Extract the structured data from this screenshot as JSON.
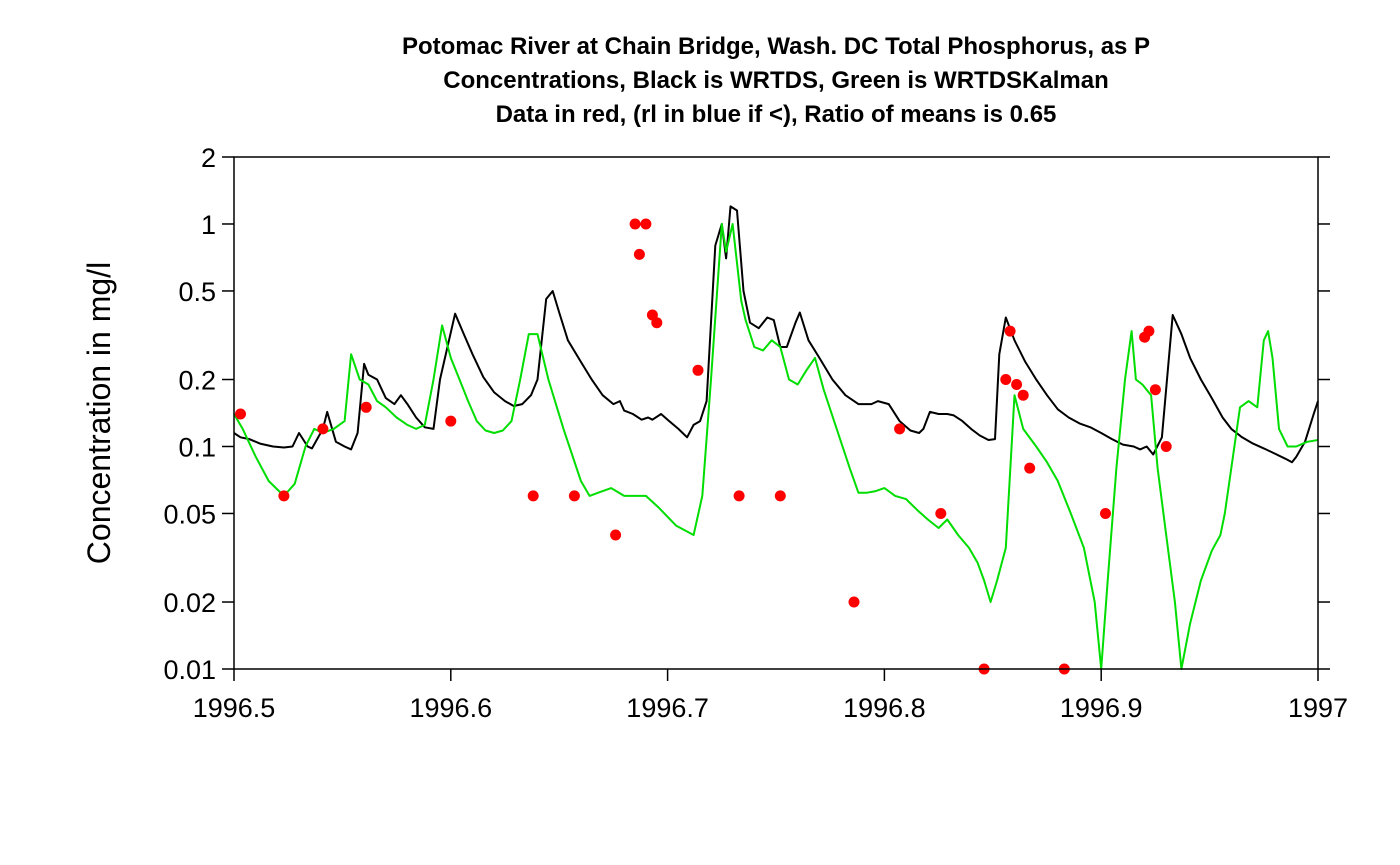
{
  "chart_data": {
    "type": "line",
    "title_lines": [
      "Potomac River at Chain Bridge, Wash. DC Total Phosphorus, as P",
      "Concentrations, Black is WRTDS, Green is WRTDSKalman",
      "Data in red, (rl in blue if <), Ratio of means is 0.65"
    ],
    "xlabel": "",
    "ylabel": "Concentration in mg/l",
    "xlim": [
      1996.5,
      1997.0
    ],
    "ylim": [
      0.01,
      2
    ],
    "y_scale": "log",
    "x_ticks": [
      1996.5,
      1996.6,
      1996.7,
      1996.8,
      1996.9,
      1997.0
    ],
    "x_tick_labels": [
      "1996.5",
      "1996.6",
      "1996.7",
      "1996.8",
      "1996.9",
      "1997"
    ],
    "y_ticks": [
      0.01,
      0.02,
      0.05,
      0.1,
      0.2,
      0.5,
      1,
      2
    ],
    "y_tick_labels": [
      "0.01",
      "0.02",
      "0.05",
      "0.1",
      "0.2",
      "0.5",
      "1",
      "2"
    ],
    "grid": false,
    "legend": "none",
    "series": [
      {
        "color": "#000000",
        "kind": "line",
        "points": [
          [
            1996.5,
            0.115
          ],
          [
            1996.503,
            0.11
          ],
          [
            1996.507,
            0.108
          ],
          [
            1996.512,
            0.103
          ],
          [
            1996.518,
            0.1
          ],
          [
            1996.523,
            0.099
          ],
          [
            1996.527,
            0.1
          ],
          [
            1996.53,
            0.115
          ],
          [
            1996.534,
            0.1
          ],
          [
            1996.536,
            0.098
          ],
          [
            1996.541,
            0.12
          ],
          [
            1996.543,
            0.143
          ],
          [
            1996.547,
            0.105
          ],
          [
            1996.551,
            0.1
          ],
          [
            1996.554,
            0.097
          ],
          [
            1996.557,
            0.115
          ],
          [
            1996.56,
            0.235
          ],
          [
            1996.562,
            0.21
          ],
          [
            1996.566,
            0.2
          ],
          [
            1996.57,
            0.165
          ],
          [
            1996.574,
            0.155
          ],
          [
            1996.577,
            0.17
          ],
          [
            1996.58,
            0.155
          ],
          [
            1996.584,
            0.135
          ],
          [
            1996.588,
            0.122
          ],
          [
            1996.592,
            0.12
          ],
          [
            1996.595,
            0.2
          ],
          [
            1996.602,
            0.395
          ],
          [
            1996.606,
            0.32
          ],
          [
            1996.61,
            0.26
          ],
          [
            1996.615,
            0.205
          ],
          [
            1996.62,
            0.175
          ],
          [
            1996.625,
            0.16
          ],
          [
            1996.629,
            0.152
          ],
          [
            1996.633,
            0.155
          ],
          [
            1996.637,
            0.17
          ],
          [
            1996.64,
            0.2
          ],
          [
            1996.644,
            0.46
          ],
          [
            1996.647,
            0.5
          ],
          [
            1996.65,
            0.4
          ],
          [
            1996.654,
            0.3
          ],
          [
            1996.66,
            0.24
          ],
          [
            1996.665,
            0.2
          ],
          [
            1996.67,
            0.17
          ],
          [
            1996.675,
            0.155
          ],
          [
            1996.678,
            0.16
          ],
          [
            1996.68,
            0.145
          ],
          [
            1996.684,
            0.14
          ],
          [
            1996.688,
            0.132
          ],
          [
            1996.691,
            0.135
          ],
          [
            1996.693,
            0.132
          ],
          [
            1996.697,
            0.14
          ],
          [
            1996.7,
            0.132
          ],
          [
            1996.705,
            0.12
          ],
          [
            1996.709,
            0.11
          ],
          [
            1996.712,
            0.125
          ],
          [
            1996.715,
            0.13
          ],
          [
            1996.718,
            0.16
          ],
          [
            1996.722,
            0.8
          ],
          [
            1996.725,
            1.0
          ],
          [
            1996.727,
            0.7
          ],
          [
            1996.729,
            1.2
          ],
          [
            1996.732,
            1.15
          ],
          [
            1996.735,
            0.5
          ],
          [
            1996.738,
            0.36
          ],
          [
            1996.742,
            0.34
          ],
          [
            1996.746,
            0.38
          ],
          [
            1996.749,
            0.37
          ],
          [
            1996.752,
            0.28
          ],
          [
            1996.755,
            0.28
          ],
          [
            1996.759,
            0.36
          ],
          [
            1996.761,
            0.4
          ],
          [
            1996.765,
            0.3
          ],
          [
            1996.77,
            0.25
          ],
          [
            1996.776,
            0.2
          ],
          [
            1996.782,
            0.17
          ],
          [
            1996.788,
            0.155
          ],
          [
            1996.794,
            0.155
          ],
          [
            1996.797,
            0.16
          ],
          [
            1996.802,
            0.155
          ],
          [
            1996.807,
            0.13
          ],
          [
            1996.812,
            0.118
          ],
          [
            1996.816,
            0.115
          ],
          [
            1996.818,
            0.12
          ],
          [
            1996.821,
            0.143
          ],
          [
            1996.825,
            0.14
          ],
          [
            1996.829,
            0.14
          ],
          [
            1996.832,
            0.138
          ],
          [
            1996.836,
            0.13
          ],
          [
            1996.84,
            0.12
          ],
          [
            1996.844,
            0.112
          ],
          [
            1996.848,
            0.107
          ],
          [
            1996.851,
            0.108
          ],
          [
            1996.853,
            0.26
          ],
          [
            1996.856,
            0.38
          ],
          [
            1996.86,
            0.3
          ],
          [
            1996.865,
            0.24
          ],
          [
            1996.87,
            0.2
          ],
          [
            1996.875,
            0.17
          ],
          [
            1996.88,
            0.147
          ],
          [
            1996.885,
            0.135
          ],
          [
            1996.89,
            0.127
          ],
          [
            1996.895,
            0.122
          ],
          [
            1996.9,
            0.115
          ],
          [
            1996.905,
            0.108
          ],
          [
            1996.91,
            0.102
          ],
          [
            1996.915,
            0.1
          ],
          [
            1996.918,
            0.097
          ],
          [
            1996.921,
            0.1
          ],
          [
            1996.924,
            0.092
          ],
          [
            1996.928,
            0.11
          ],
          [
            1996.933,
            0.39
          ],
          [
            1996.937,
            0.32
          ],
          [
            1996.941,
            0.25
          ],
          [
            1996.946,
            0.2
          ],
          [
            1996.951,
            0.165
          ],
          [
            1996.956,
            0.135
          ],
          [
            1996.96,
            0.12
          ],
          [
            1996.965,
            0.11
          ],
          [
            1996.97,
            0.103
          ],
          [
            1996.975,
            0.098
          ],
          [
            1996.98,
            0.093
          ],
          [
            1996.985,
            0.088
          ],
          [
            1996.988,
            0.085
          ],
          [
            1996.99,
            0.09
          ],
          [
            1996.994,
            0.105
          ],
          [
            1996.998,
            0.14
          ],
          [
            1997.0,
            0.16
          ]
        ]
      },
      {
        "color": "#00dd00",
        "kind": "line",
        "points": [
          [
            1996.5,
            0.14
          ],
          [
            1996.504,
            0.12
          ],
          [
            1996.51,
            0.09
          ],
          [
            1996.516,
            0.07
          ],
          [
            1996.523,
            0.06
          ],
          [
            1996.528,
            0.068
          ],
          [
            1996.533,
            0.1
          ],
          [
            1996.537,
            0.12
          ],
          [
            1996.541,
            0.115
          ],
          [
            1996.546,
            0.12
          ],
          [
            1996.551,
            0.13
          ],
          [
            1996.554,
            0.26
          ],
          [
            1996.558,
            0.2
          ],
          [
            1996.562,
            0.19
          ],
          [
            1996.566,
            0.16
          ],
          [
            1996.57,
            0.15
          ],
          [
            1996.575,
            0.135
          ],
          [
            1996.58,
            0.125
          ],
          [
            1996.584,
            0.12
          ],
          [
            1996.588,
            0.125
          ],
          [
            1996.592,
            0.2
          ],
          [
            1996.596,
            0.35
          ],
          [
            1996.6,
            0.25
          ],
          [
            1996.604,
            0.2
          ],
          [
            1996.608,
            0.16
          ],
          [
            1996.612,
            0.13
          ],
          [
            1996.616,
            0.118
          ],
          [
            1996.62,
            0.115
          ],
          [
            1996.624,
            0.118
          ],
          [
            1996.628,
            0.13
          ],
          [
            1996.632,
            0.2
          ],
          [
            1996.636,
            0.32
          ],
          [
            1996.64,
            0.32
          ],
          [
            1996.645,
            0.2
          ],
          [
            1996.652,
            0.12
          ],
          [
            1996.66,
            0.07
          ],
          [
            1996.664,
            0.06
          ],
          [
            1996.668,
            0.062
          ],
          [
            1996.674,
            0.065
          ],
          [
            1996.68,
            0.06
          ],
          [
            1996.686,
            0.06
          ],
          [
            1996.69,
            0.06
          ],
          [
            1996.696,
            0.053
          ],
          [
            1996.704,
            0.044
          ],
          [
            1996.712,
            0.04
          ],
          [
            1996.716,
            0.06
          ],
          [
            1996.72,
            0.2
          ],
          [
            1996.725,
            1.0
          ],
          [
            1996.727,
            0.75
          ],
          [
            1996.73,
            1.0
          ],
          [
            1996.734,
            0.45
          ],
          [
            1996.736,
            0.37
          ],
          [
            1996.74,
            0.28
          ],
          [
            1996.744,
            0.27
          ],
          [
            1996.748,
            0.3
          ],
          [
            1996.752,
            0.28
          ],
          [
            1996.756,
            0.2
          ],
          [
            1996.76,
            0.19
          ],
          [
            1996.764,
            0.22
          ],
          [
            1996.768,
            0.25
          ],
          [
            1996.772,
            0.18
          ],
          [
            1996.778,
            0.12
          ],
          [
            1996.784,
            0.08
          ],
          [
            1996.788,
            0.062
          ],
          [
            1996.792,
            0.062
          ],
          [
            1996.796,
            0.063
          ],
          [
            1996.8,
            0.065
          ],
          [
            1996.805,
            0.06
          ],
          [
            1996.81,
            0.058
          ],
          [
            1996.815,
            0.052
          ],
          [
            1996.82,
            0.047
          ],
          [
            1996.825,
            0.043
          ],
          [
            1996.829,
            0.047
          ],
          [
            1996.834,
            0.04
          ],
          [
            1996.839,
            0.035
          ],
          [
            1996.843,
            0.03
          ],
          [
            1996.846,
            0.025
          ],
          [
            1996.849,
            0.02
          ],
          [
            1996.852,
            0.025
          ],
          [
            1996.856,
            0.035
          ],
          [
            1996.86,
            0.17
          ],
          [
            1996.864,
            0.12
          ],
          [
            1996.87,
            0.1
          ],
          [
            1996.875,
            0.085
          ],
          [
            1996.88,
            0.07
          ],
          [
            1996.886,
            0.05
          ],
          [
            1996.892,
            0.035
          ],
          [
            1996.897,
            0.02
          ],
          [
            1996.9,
            0.01
          ],
          [
            1996.903,
            0.025
          ],
          [
            1996.907,
            0.08
          ],
          [
            1996.911,
            0.2
          ],
          [
            1996.914,
            0.33
          ],
          [
            1996.916,
            0.2
          ],
          [
            1996.919,
            0.19
          ],
          [
            1996.923,
            0.17
          ],
          [
            1996.926,
            0.08
          ],
          [
            1996.93,
            0.04
          ],
          [
            1996.934,
            0.02
          ],
          [
            1996.937,
            0.01
          ],
          [
            1996.941,
            0.016
          ],
          [
            1996.946,
            0.025
          ],
          [
            1996.951,
            0.034
          ],
          [
            1996.955,
            0.04
          ],
          [
            1996.957,
            0.05
          ],
          [
            1996.96,
            0.08
          ],
          [
            1996.964,
            0.15
          ],
          [
            1996.968,
            0.16
          ],
          [
            1996.972,
            0.15
          ],
          [
            1996.975,
            0.3
          ],
          [
            1996.977,
            0.33
          ],
          [
            1996.979,
            0.25
          ],
          [
            1996.982,
            0.12
          ],
          [
            1996.986,
            0.1
          ],
          [
            1996.99,
            0.1
          ],
          [
            1996.995,
            0.105
          ],
          [
            1997.0,
            0.107
          ]
        ]
      },
      {
        "color": "#ff0000",
        "kind": "scatter",
        "points": [
          [
            1996.503,
            0.14
          ],
          [
            1996.523,
            0.06
          ],
          [
            1996.541,
            0.12
          ],
          [
            1996.561,
            0.15
          ],
          [
            1996.6,
            0.13
          ],
          [
            1996.638,
            0.06
          ],
          [
            1996.657,
            0.06
          ],
          [
            1996.676,
            0.04
          ],
          [
            1996.685,
            1.0
          ],
          [
            1996.687,
            0.73
          ],
          [
            1996.69,
            1.0
          ],
          [
            1996.693,
            0.39
          ],
          [
            1996.695,
            0.36
          ],
          [
            1996.714,
            0.22
          ],
          [
            1996.733,
            0.06
          ],
          [
            1996.752,
            0.06
          ],
          [
            1996.786,
            0.02
          ],
          [
            1996.807,
            0.12
          ],
          [
            1996.826,
            0.05
          ],
          [
            1996.846,
            0.01
          ],
          [
            1996.856,
            0.2
          ],
          [
            1996.858,
            0.33
          ],
          [
            1996.861,
            0.19
          ],
          [
            1996.864,
            0.17
          ],
          [
            1996.867,
            0.08
          ],
          [
            1996.883,
            0.01
          ],
          [
            1996.902,
            0.05
          ],
          [
            1996.92,
            0.31
          ],
          [
            1996.922,
            0.33
          ],
          [
            1996.925,
            0.18
          ],
          [
            1996.93,
            0.1
          ]
        ]
      }
    ]
  }
}
